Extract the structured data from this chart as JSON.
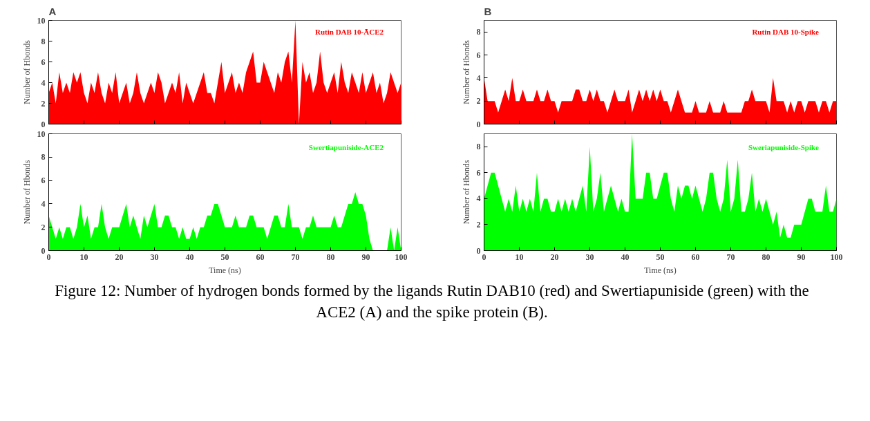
{
  "chart_data": [
    {
      "type": "area",
      "title": "A",
      "annotations": [
        "Figure 12: Number of hydrogen bonds formed by the ligands Rutin DAB10 (red) and Swertiapuniside (green) with the ACE2 (A) and the spike protein (B)."
      ],
      "ylabel": "Number of Hbonds",
      "xlim": [
        0,
        100
      ],
      "xticks": [
        0,
        10,
        20,
        30,
        40,
        50,
        60,
        70,
        80,
        90,
        100
      ],
      "ylim": [
        0,
        10
      ],
      "yticks": [
        0,
        2,
        4,
        6,
        8,
        10
      ],
      "tick_labels": "y",
      "x": [
        0,
        1,
        2,
        3,
        4,
        5,
        6,
        7,
        8,
        9,
        10,
        11,
        12,
        13,
        14,
        15,
        16,
        17,
        18,
        19,
        20,
        21,
        22,
        23,
        24,
        25,
        26,
        27,
        28,
        29,
        30,
        31,
        32,
        33,
        34,
        35,
        36,
        37,
        38,
        39,
        40,
        41,
        42,
        43,
        44,
        45,
        46,
        47,
        48,
        49,
        50,
        51,
        52,
        53,
        54,
        55,
        56,
        57,
        58,
        59,
        60,
        61,
        62,
        63,
        64,
        65,
        66,
        67,
        68,
        69,
        70,
        71,
        72,
        73,
        74,
        75,
        76,
        77,
        78,
        79,
        80,
        81,
        82,
        83,
        84,
        85,
        86,
        87,
        88,
        89,
        90,
        91,
        92,
        93,
        94,
        95,
        96,
        97,
        98,
        99,
        100
      ],
      "series": [
        {
          "name": "Rutin DAB 10-ĀCE2",
          "color": "#ff0000",
          "values": [
            3,
            4,
            2,
            5,
            3,
            4,
            3,
            5,
            4,
            5,
            3,
            2,
            4,
            3,
            5,
            3,
            2,
            4,
            3,
            5,
            2,
            3,
            4,
            2,
            3,
            5,
            3,
            2,
            3,
            4,
            3,
            5,
            4,
            2,
            3,
            4,
            3,
            5,
            2,
            4,
            3,
            2,
            3,
            4,
            5,
            3,
            3,
            2,
            4,
            6,
            3,
            4,
            5,
            3,
            4,
            3,
            5,
            6,
            7,
            4,
            4,
            6,
            5,
            4,
            3,
            5,
            4,
            6,
            7,
            4,
            10,
            0,
            6,
            4,
            5,
            3,
            4,
            7,
            4,
            3,
            4,
            5,
            3,
            6,
            4,
            3,
            5,
            4,
            3,
            5,
            3,
            4,
            5,
            3,
            4,
            2,
            3,
            5,
            4,
            3,
            4
          ]
        }
      ]
    },
    {
      "type": "area",
      "xlabel": "Time (ns)",
      "ylabel": "Number of Hbonds",
      "xlim": [
        0,
        100
      ],
      "xticks": [
        0,
        10,
        20,
        30,
        40,
        50,
        60,
        70,
        80,
        90,
        100
      ],
      "ylim": [
        0,
        10
      ],
      "yticks": [
        0,
        2,
        4,
        6,
        8,
        10
      ],
      "x": [
        0,
        1,
        2,
        3,
        4,
        5,
        6,
        7,
        8,
        9,
        10,
        11,
        12,
        13,
        14,
        15,
        16,
        17,
        18,
        19,
        20,
        21,
        22,
        23,
        24,
        25,
        26,
        27,
        28,
        29,
        30,
        31,
        32,
        33,
        34,
        35,
        36,
        37,
        38,
        39,
        40,
        41,
        42,
        43,
        44,
        45,
        46,
        47,
        48,
        49,
        50,
        51,
        52,
        53,
        54,
        55,
        56,
        57,
        58,
        59,
        60,
        61,
        62,
        63,
        64,
        65,
        66,
        67,
        68,
        69,
        70,
        71,
        72,
        73,
        74,
        75,
        76,
        77,
        78,
        79,
        80,
        81,
        82,
        83,
        84,
        85,
        86,
        87,
        88,
        89,
        90,
        91,
        92,
        93,
        94,
        95,
        96,
        97,
        98,
        99,
        100
      ],
      "series": [
        {
          "name": "Swertiapuniside-ACE2",
          "color": "#00ff00",
          "values": [
            3,
            2,
            1,
            2,
            1,
            2,
            2,
            1,
            2,
            4,
            2,
            3,
            1,
            2,
            2,
            4,
            2,
            1,
            2,
            2,
            2,
            3,
            4,
            2,
            3,
            2,
            1,
            3,
            2,
            3,
            4,
            2,
            2,
            3,
            3,
            2,
            2,
            1,
            2,
            1,
            1,
            2,
            1,
            2,
            2,
            3,
            3,
            4,
            4,
            3,
            2,
            2,
            2,
            3,
            2,
            2,
            2,
            3,
            3,
            2,
            2,
            2,
            1,
            2,
            3,
            3,
            2,
            2,
            4,
            2,
            2,
            2,
            1,
            2,
            2,
            3,
            2,
            2,
            2,
            2,
            2,
            3,
            2,
            2,
            3,
            4,
            4,
            5,
            4,
            4,
            3,
            1,
            0,
            0,
            0,
            0,
            0,
            2,
            0,
            2,
            0
          ]
        }
      ]
    },
    {
      "type": "area",
      "title": "B",
      "ylabel": "Number of Hbonds",
      "xlim": [
        0,
        100
      ],
      "xticks": [
        0,
        10,
        20,
        30,
        40,
        50,
        60,
        70,
        80,
        90,
        100
      ],
      "ylim": [
        0,
        9
      ],
      "yticks": [
        0,
        2,
        4,
        6,
        8
      ],
      "tick_labels": "y",
      "x": [
        0,
        1,
        2,
        3,
        4,
        5,
        6,
        7,
        8,
        9,
        10,
        11,
        12,
        13,
        14,
        15,
        16,
        17,
        18,
        19,
        20,
        21,
        22,
        23,
        24,
        25,
        26,
        27,
        28,
        29,
        30,
        31,
        32,
        33,
        34,
        35,
        36,
        37,
        38,
        39,
        40,
        41,
        42,
        43,
        44,
        45,
        46,
        47,
        48,
        49,
        50,
        51,
        52,
        53,
        54,
        55,
        56,
        57,
        58,
        59,
        60,
        61,
        62,
        63,
        64,
        65,
        66,
        67,
        68,
        69,
        70,
        71,
        72,
        73,
        74,
        75,
        76,
        77,
        78,
        79,
        80,
        81,
        82,
        83,
        84,
        85,
        86,
        87,
        88,
        89,
        90,
        91,
        92,
        93,
        94,
        95,
        96,
        97,
        98,
        99,
        100
      ],
      "series": [
        {
          "name": "Rutin DAB 10-Spike",
          "color": "#ff0000",
          "values": [
            4,
            2,
            2,
            2,
            1,
            2,
            3,
            2,
            4,
            2,
            2,
            3,
            2,
            2,
            2,
            3,
            2,
            2,
            3,
            2,
            2,
            1,
            2,
            2,
            2,
            2,
            3,
            3,
            2,
            2,
            3,
            2,
            3,
            2,
            2,
            1,
            2,
            3,
            2,
            2,
            2,
            3,
            1,
            2,
            3,
            2,
            3,
            2,
            3,
            2,
            3,
            2,
            2,
            1,
            2,
            3,
            2,
            1,
            1,
            1,
            2,
            1,
            1,
            1,
            2,
            1,
            1,
            1,
            2,
            1,
            1,
            1,
            1,
            1,
            2,
            2,
            3,
            2,
            2,
            2,
            2,
            1,
            4,
            2,
            2,
            2,
            1,
            2,
            1,
            2,
            2,
            1,
            2,
            2,
            2,
            1,
            2,
            2,
            1,
            2,
            2
          ]
        }
      ]
    },
    {
      "type": "area",
      "xlabel": "Time (ns)",
      "ylabel": "Number of Hbonds",
      "xlim": [
        0,
        100
      ],
      "xticks": [
        0,
        10,
        20,
        30,
        40,
        50,
        60,
        70,
        80,
        90,
        100
      ],
      "ylim": [
        0,
        9
      ],
      "yticks": [
        0,
        2,
        4,
        6,
        8
      ],
      "x": [
        0,
        1,
        2,
        3,
        4,
        5,
        6,
        7,
        8,
        9,
        10,
        11,
        12,
        13,
        14,
        15,
        16,
        17,
        18,
        19,
        20,
        21,
        22,
        23,
        24,
        25,
        26,
        27,
        28,
        29,
        30,
        31,
        32,
        33,
        34,
        35,
        36,
        37,
        38,
        39,
        40,
        41,
        42,
        43,
        44,
        45,
        46,
        47,
        48,
        49,
        50,
        51,
        52,
        53,
        54,
        55,
        56,
        57,
        58,
        59,
        60,
        61,
        62,
        63,
        64,
        65,
        66,
        67,
        68,
        69,
        70,
        71,
        72,
        73,
        74,
        75,
        76,
        77,
        78,
        79,
        80,
        81,
        82,
        83,
        84,
        85,
        86,
        87,
        88,
        89,
        90,
        91,
        92,
        93,
        94,
        95,
        96,
        97,
        98,
        99,
        100
      ],
      "series": [
        {
          "name": "Sweriapuniside-Spike",
          "color": "#00ff00",
          "values": [
            4,
            5,
            6,
            6,
            5,
            4,
            3,
            4,
            3,
            5,
            3,
            4,
            3,
            4,
            3,
            6,
            3,
            4,
            4,
            3,
            3,
            4,
            3,
            4,
            3,
            4,
            3,
            4,
            5,
            3,
            8,
            3,
            4,
            6,
            3,
            4,
            5,
            4,
            3,
            4,
            3,
            3,
            9,
            4,
            4,
            4,
            6,
            6,
            4,
            4,
            5,
            6,
            6,
            4,
            3,
            5,
            4,
            5,
            5,
            4,
            5,
            4,
            3,
            4,
            6,
            6,
            4,
            3,
            4,
            7,
            3,
            4,
            7,
            3,
            3,
            4,
            6,
            3,
            4,
            3,
            4,
            3,
            2,
            3,
            1,
            2,
            1,
            1,
            2,
            2,
            2,
            3,
            4,
            4,
            3,
            3,
            3,
            5,
            3,
            3,
            4
          ]
        }
      ]
    }
  ]
}
